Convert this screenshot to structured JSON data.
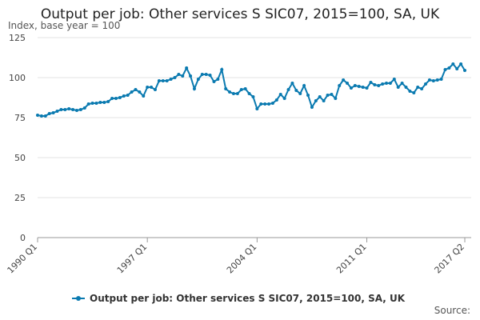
{
  "chart_data": {
    "type": "line",
    "title": "Output per job: Other services S SIC07, 2015=100, SA, UK",
    "y_label": "Index, base year = 100",
    "source": "Source:",
    "categories": [
      "1990 Q1",
      null,
      null,
      null,
      null,
      null,
      null,
      null,
      null,
      null,
      null,
      null,
      null,
      null,
      null,
      null,
      null,
      null,
      null,
      null,
      null,
      null,
      null,
      null,
      null,
      null,
      null,
      null,
      "1997 Q1",
      null,
      null,
      null,
      null,
      null,
      null,
      null,
      null,
      null,
      null,
      null,
      null,
      null,
      null,
      null,
      null,
      null,
      null,
      null,
      null,
      null,
      null,
      null,
      null,
      null,
      null,
      null,
      "2004 Q1",
      null,
      null,
      null,
      null,
      null,
      null,
      null,
      null,
      null,
      null,
      null,
      null,
      null,
      null,
      null,
      null,
      null,
      null,
      null,
      null,
      null,
      null,
      null,
      null,
      null,
      null,
      null,
      "2011 Q1",
      null,
      null,
      null,
      null,
      null,
      null,
      null,
      null,
      null,
      null,
      null,
      null,
      null,
      null,
      null,
      null,
      null,
      null,
      null,
      null,
      null,
      null,
      null,
      null,
      "2017 Q2"
    ],
    "series": [
      {
        "name": "Output per job: Other services S SIC07, 2015=100, SA, UK",
        "color": "#0a7ab0",
        "values": [
          76.5,
          76,
          76,
          77.5,
          78,
          79,
          80,
          80,
          80.5,
          80,
          79.5,
          80,
          81,
          83.5,
          84,
          84,
          84.5,
          84.5,
          85,
          87,
          87,
          87.5,
          88.5,
          89,
          91,
          92.5,
          91,
          88.5,
          94,
          94,
          92.5,
          98,
          98,
          98,
          99,
          100,
          102,
          101,
          106,
          101,
          93,
          99,
          102,
          102,
          101.5,
          97.5,
          99,
          105,
          93,
          91,
          90,
          90,
          92.5,
          93,
          90,
          88,
          80.5,
          83.5,
          83.5,
          83.5,
          84,
          86,
          89.5,
          87,
          92.5,
          96.5,
          92,
          90,
          95,
          89,
          81.5,
          85.5,
          88,
          85.5,
          89,
          89.5,
          87,
          95,
          98.5,
          96.5,
          93.5,
          95,
          94.5,
          94,
          93.5,
          97,
          95.5,
          95,
          96,
          96.5,
          96.5,
          99,
          94,
          96.5,
          94,
          91.5,
          90.5,
          94,
          93,
          96,
          98.5,
          98,
          98.5,
          99,
          105,
          106,
          108.5,
          105.5,
          108.5,
          104.5
        ]
      }
    ],
    "ylim": [
      0,
      125
    ],
    "yticks": [
      0,
      25,
      50,
      75,
      100,
      125
    ],
    "grid": true,
    "legend": "bottom"
  }
}
